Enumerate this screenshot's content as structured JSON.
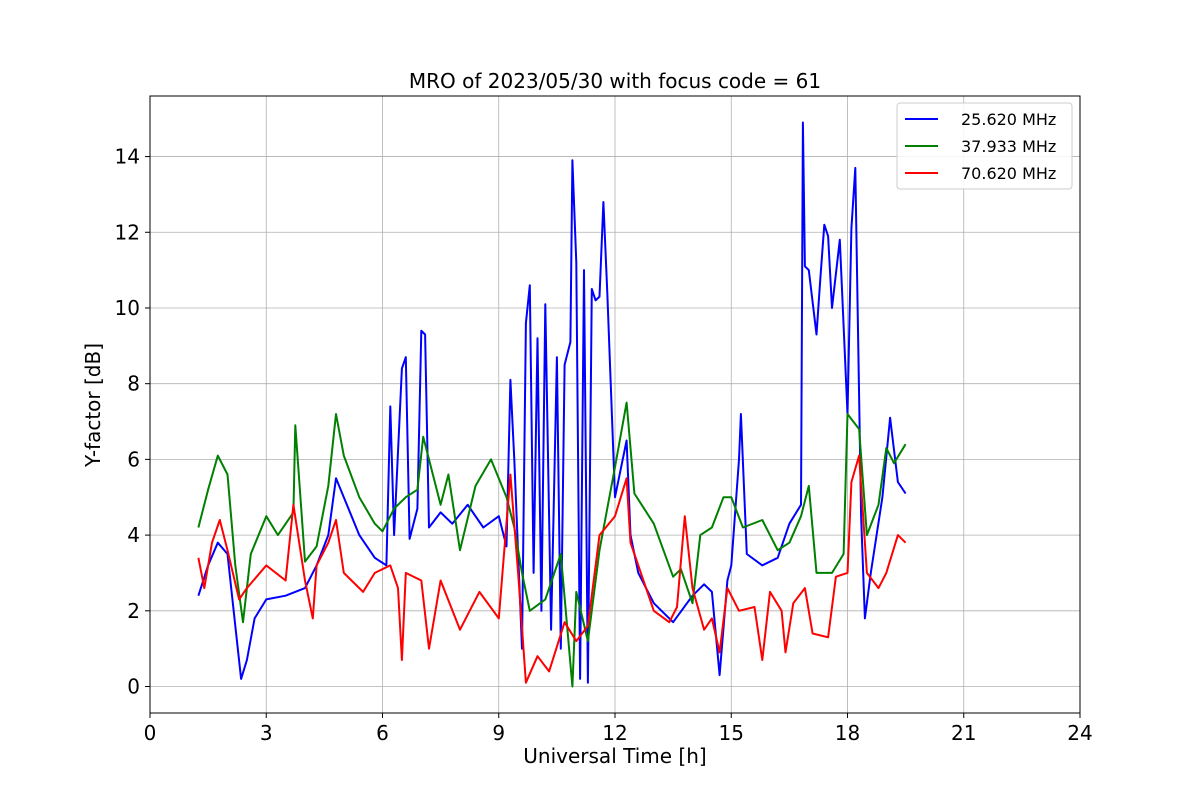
{
  "chart_data": {
    "type": "line",
    "title": "MRO of 2023/05/30 with focus code = 61",
    "xlabel": "Universal Time [h]",
    "ylabel": "Y-factor [dB]",
    "xlim": [
      0,
      24
    ],
    "ylim": [
      -0.7,
      15.6
    ],
    "xticks": [
      0,
      3,
      6,
      9,
      12,
      15,
      18,
      21,
      24
    ],
    "yticks": [
      0,
      2,
      4,
      6,
      8,
      10,
      12,
      14
    ],
    "grid": true,
    "legend_position": "top-right",
    "series": [
      {
        "name": "25.620 MHz",
        "color": "#0000ff",
        "points": [
          [
            1.25,
            2.4
          ],
          [
            1.5,
            3.2
          ],
          [
            1.75,
            3.8
          ],
          [
            2.0,
            3.5
          ],
          [
            2.2,
            1.6
          ],
          [
            2.35,
            0.2
          ],
          [
            2.5,
            0.7
          ],
          [
            2.7,
            1.8
          ],
          [
            3.0,
            2.3
          ],
          [
            3.5,
            2.4
          ],
          [
            4.0,
            2.6
          ],
          [
            4.3,
            3.2
          ],
          [
            4.6,
            4.0
          ],
          [
            4.8,
            5.5
          ],
          [
            5.0,
            5.0
          ],
          [
            5.4,
            4.0
          ],
          [
            5.8,
            3.4
          ],
          [
            6.1,
            3.2
          ],
          [
            6.2,
            7.4
          ],
          [
            6.3,
            4.0
          ],
          [
            6.5,
            8.4
          ],
          [
            6.6,
            8.7
          ],
          [
            6.7,
            3.9
          ],
          [
            6.9,
            4.7
          ],
          [
            7.0,
            9.4
          ],
          [
            7.1,
            9.3
          ],
          [
            7.2,
            4.2
          ],
          [
            7.5,
            4.6
          ],
          [
            7.8,
            4.3
          ],
          [
            8.2,
            4.8
          ],
          [
            8.6,
            4.2
          ],
          [
            9.0,
            4.5
          ],
          [
            9.2,
            3.7
          ],
          [
            9.3,
            8.1
          ],
          [
            9.4,
            6.0
          ],
          [
            9.6,
            1.0
          ],
          [
            9.7,
            9.6
          ],
          [
            9.8,
            10.6
          ],
          [
            9.9,
            3.0
          ],
          [
            10.0,
            9.2
          ],
          [
            10.1,
            2.0
          ],
          [
            10.2,
            10.1
          ],
          [
            10.35,
            1.5
          ],
          [
            10.5,
            8.7
          ],
          [
            10.6,
            1.0
          ],
          [
            10.7,
            8.5
          ],
          [
            10.85,
            9.1
          ],
          [
            10.9,
            13.9
          ],
          [
            11.0,
            11.2
          ],
          [
            11.1,
            0.2
          ],
          [
            11.2,
            11.0
          ],
          [
            11.3,
            0.1
          ],
          [
            11.4,
            10.5
          ],
          [
            11.5,
            10.2
          ],
          [
            11.6,
            10.3
          ],
          [
            11.7,
            12.8
          ],
          [
            11.8,
            10.4
          ],
          [
            12.0,
            5.0
          ],
          [
            12.3,
            6.5
          ],
          [
            12.4,
            4.0
          ],
          [
            12.6,
            3.0
          ],
          [
            13.0,
            2.2
          ],
          [
            13.5,
            1.7
          ],
          [
            14.0,
            2.4
          ],
          [
            14.3,
            2.7
          ],
          [
            14.5,
            2.5
          ],
          [
            14.7,
            0.3
          ],
          [
            14.9,
            2.8
          ],
          [
            15.0,
            3.2
          ],
          [
            15.2,
            6.0
          ],
          [
            15.25,
            7.2
          ],
          [
            15.4,
            3.5
          ],
          [
            15.8,
            3.2
          ],
          [
            16.2,
            3.4
          ],
          [
            16.5,
            4.3
          ],
          [
            16.8,
            4.8
          ],
          [
            16.85,
            14.9
          ],
          [
            16.9,
            11.1
          ],
          [
            17.0,
            11.0
          ],
          [
            17.2,
            9.3
          ],
          [
            17.3,
            10.8
          ],
          [
            17.4,
            12.2
          ],
          [
            17.5,
            11.9
          ],
          [
            17.6,
            10.0
          ],
          [
            17.8,
            11.8
          ],
          [
            18.0,
            7.2
          ],
          [
            18.1,
            12.1
          ],
          [
            18.2,
            13.7
          ],
          [
            18.35,
            4.5
          ],
          [
            18.45,
            1.8
          ],
          [
            18.6,
            3.0
          ],
          [
            18.9,
            5.0
          ],
          [
            19.1,
            7.1
          ],
          [
            19.3,
            5.4
          ],
          [
            19.5,
            5.1
          ]
        ]
      },
      {
        "name": "37.933 MHz",
        "color": "#008000",
        "points": [
          [
            1.25,
            4.2
          ],
          [
            1.5,
            5.2
          ],
          [
            1.75,
            6.1
          ],
          [
            2.0,
            5.6
          ],
          [
            2.2,
            3.2
          ],
          [
            2.4,
            1.7
          ],
          [
            2.6,
            3.5
          ],
          [
            3.0,
            4.5
          ],
          [
            3.3,
            4.0
          ],
          [
            3.7,
            4.6
          ],
          [
            3.75,
            6.9
          ],
          [
            4.0,
            3.3
          ],
          [
            4.3,
            3.7
          ],
          [
            4.6,
            5.3
          ],
          [
            4.8,
            7.2
          ],
          [
            5.0,
            6.1
          ],
          [
            5.4,
            5.0
          ],
          [
            5.8,
            4.3
          ],
          [
            6.0,
            4.1
          ],
          [
            6.3,
            4.7
          ],
          [
            6.6,
            5.0
          ],
          [
            6.9,
            5.2
          ],
          [
            7.05,
            6.6
          ],
          [
            7.5,
            4.8
          ],
          [
            7.7,
            5.6
          ],
          [
            8.0,
            3.6
          ],
          [
            8.4,
            5.3
          ],
          [
            8.8,
            6.0
          ],
          [
            9.2,
            5.0
          ],
          [
            9.4,
            4.2
          ],
          [
            9.6,
            3.0
          ],
          [
            9.8,
            2.0
          ],
          [
            10.2,
            2.3
          ],
          [
            10.6,
            3.5
          ],
          [
            10.9,
            0.0
          ],
          [
            11.0,
            2.5
          ],
          [
            11.3,
            1.2
          ],
          [
            11.6,
            3.6
          ],
          [
            12.0,
            5.8
          ],
          [
            12.3,
            7.5
          ],
          [
            12.5,
            5.1
          ],
          [
            13.0,
            4.3
          ],
          [
            13.5,
            2.9
          ],
          [
            13.7,
            3.1
          ],
          [
            14.0,
            2.2
          ],
          [
            14.2,
            4.0
          ],
          [
            14.5,
            4.2
          ],
          [
            14.8,
            5.0
          ],
          [
            15.0,
            5.0
          ],
          [
            15.3,
            4.2
          ],
          [
            15.8,
            4.4
          ],
          [
            16.2,
            3.6
          ],
          [
            16.5,
            3.8
          ],
          [
            16.8,
            4.5
          ],
          [
            17.0,
            5.3
          ],
          [
            17.2,
            3.0
          ],
          [
            17.6,
            3.0
          ],
          [
            17.9,
            3.5
          ],
          [
            18.0,
            7.2
          ],
          [
            18.3,
            6.8
          ],
          [
            18.5,
            4.0
          ],
          [
            18.8,
            4.8
          ],
          [
            19.0,
            6.3
          ],
          [
            19.2,
            5.9
          ],
          [
            19.5,
            6.4
          ]
        ]
      },
      {
        "name": "70.620 MHz",
        "color": "#ff0000",
        "points": [
          [
            1.25,
            3.4
          ],
          [
            1.4,
            2.6
          ],
          [
            1.6,
            3.8
          ],
          [
            1.8,
            4.4
          ],
          [
            2.0,
            3.6
          ],
          [
            2.3,
            2.3
          ],
          [
            2.5,
            2.6
          ],
          [
            3.0,
            3.2
          ],
          [
            3.5,
            2.8
          ],
          [
            3.7,
            4.8
          ],
          [
            4.0,
            2.8
          ],
          [
            4.2,
            1.8
          ],
          [
            4.3,
            3.2
          ],
          [
            4.6,
            3.8
          ],
          [
            4.8,
            4.4
          ],
          [
            5.0,
            3.0
          ],
          [
            5.5,
            2.5
          ],
          [
            5.8,
            3.0
          ],
          [
            6.2,
            3.2
          ],
          [
            6.4,
            2.6
          ],
          [
            6.5,
            0.7
          ],
          [
            6.6,
            3.0
          ],
          [
            7.0,
            2.8
          ],
          [
            7.2,
            1.0
          ],
          [
            7.5,
            2.8
          ],
          [
            8.0,
            1.5
          ],
          [
            8.5,
            2.5
          ],
          [
            9.0,
            1.8
          ],
          [
            9.3,
            5.6
          ],
          [
            9.5,
            3.0
          ],
          [
            9.7,
            0.1
          ],
          [
            10.0,
            0.8
          ],
          [
            10.3,
            0.4
          ],
          [
            10.7,
            1.7
          ],
          [
            11.0,
            1.2
          ],
          [
            11.3,
            1.6
          ],
          [
            11.6,
            4.0
          ],
          [
            12.0,
            4.5
          ],
          [
            12.3,
            5.5
          ],
          [
            12.4,
            3.8
          ],
          [
            12.6,
            3.2
          ],
          [
            13.0,
            2.0
          ],
          [
            13.4,
            1.7
          ],
          [
            13.6,
            2.1
          ],
          [
            13.8,
            4.5
          ],
          [
            14.0,
            2.6
          ],
          [
            14.3,
            1.5
          ],
          [
            14.5,
            1.8
          ],
          [
            14.7,
            0.9
          ],
          [
            14.9,
            2.6
          ],
          [
            15.2,
            2.0
          ],
          [
            15.6,
            2.1
          ],
          [
            15.8,
            0.7
          ],
          [
            16.0,
            2.5
          ],
          [
            16.3,
            2.0
          ],
          [
            16.4,
            0.9
          ],
          [
            16.6,
            2.2
          ],
          [
            16.9,
            2.6
          ],
          [
            17.1,
            1.4
          ],
          [
            17.5,
            1.3
          ],
          [
            17.7,
            2.9
          ],
          [
            18.0,
            3.0
          ],
          [
            18.1,
            5.4
          ],
          [
            18.3,
            6.1
          ],
          [
            18.5,
            3.0
          ],
          [
            18.8,
            2.6
          ],
          [
            19.0,
            3.0
          ],
          [
            19.3,
            4.0
          ],
          [
            19.5,
            3.8
          ]
        ]
      }
    ]
  }
}
